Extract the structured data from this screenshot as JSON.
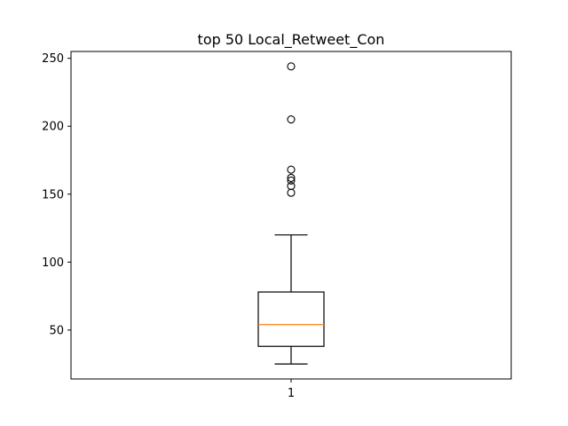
{
  "chart_data": {
    "type": "box",
    "title": "top 50 Local_Retweet_Con",
    "xlabel": "",
    "ylabel": "",
    "x_ticks": [
      "1"
    ],
    "y_ticks": [
      50,
      100,
      150,
      200,
      250
    ],
    "ylim": [
      14,
      255
    ],
    "grid": false,
    "boxes": [
      {
        "category": "1",
        "whisker_low": 25,
        "q1": 38,
        "median": 54,
        "q3": 78,
        "whisker_high": 120,
        "outliers": [
          151,
          156,
          160,
          162,
          168,
          205,
          244
        ]
      }
    ],
    "colors": {
      "box": "#000000",
      "median": "#ff7f0e",
      "outlier_edge": "#000000"
    }
  }
}
